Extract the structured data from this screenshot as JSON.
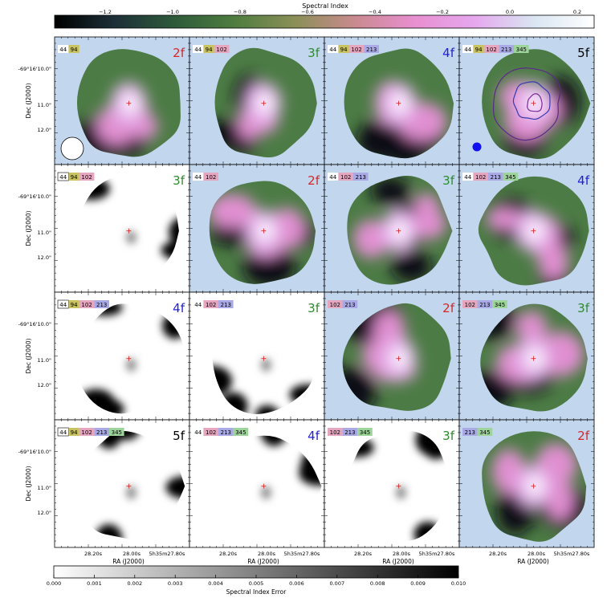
{
  "chart_data": {
    "type": "heatmap",
    "top_colorbar": {
      "label": "Spectral Index",
      "range": [
        -1.35,
        0.25
      ],
      "ticks": [
        "−1.2",
        "−1.0",
        "−0.8",
        "−0.6",
        "−0.4",
        "−0.2",
        "0.0",
        "0.2"
      ],
      "tick_values": [
        -1.2,
        -1.0,
        -0.8,
        -0.6,
        -0.4,
        -0.2,
        0.0,
        0.2
      ],
      "colormap": [
        "#000000",
        "#1d2f38",
        "#2e5a3a",
        "#4f7d3f",
        "#8a8f57",
        "#c98a8e",
        "#e88fd0",
        "#e6a7ee",
        "#d9e6f2",
        "#ffffff"
      ]
    },
    "bottom_colorbar": {
      "label": "Spectral Index Error",
      "range": [
        0.0,
        0.01
      ],
      "ticks": [
        "0.000",
        "0.001",
        "0.002",
        "0.003",
        "0.004",
        "0.005",
        "0.006",
        "0.007",
        "0.008",
        "0.009",
        "0.010"
      ],
      "colormap": [
        "#ffffff",
        "#000000"
      ]
    },
    "axes": {
      "xlabel": "RA (J2000)",
      "ylabel": "Dec (J2000)",
      "xticks": [
        "28.20s",
        "28.00s",
        "5h35m27.80s"
      ],
      "yticks": [
        "-69°16'10.0\"",
        "11.0\"",
        "12.0\""
      ]
    },
    "grid": {
      "rows": 4,
      "cols": 4,
      "panels": [
        {
          "bands": [
            "44",
            "94"
          ],
          "fit": "2f",
          "map": "index",
          "beam": "large"
        },
        {
          "bands": [
            "44",
            "94",
            "102"
          ],
          "fit": "3f",
          "map": "index"
        },
        {
          "bands": [
            "44",
            "94",
            "102",
            "213"
          ],
          "fit": "4f",
          "map": "index"
        },
        {
          "bands": [
            "44",
            "94",
            "102",
            "213",
            "345"
          ],
          "fit": "5f",
          "map": "index",
          "contours": true,
          "beam": "small"
        },
        {
          "bands": [
            "44",
            "94",
            "102"
          ],
          "fit": "3f",
          "map": "error"
        },
        {
          "bands": [
            "44",
            "102"
          ],
          "fit": "2f",
          "map": "index"
        },
        {
          "bands": [
            "44",
            "102",
            "213"
          ],
          "fit": "3f",
          "map": "index"
        },
        {
          "bands": [
            "44",
            "102",
            "213",
            "345"
          ],
          "fit": "4f",
          "map": "index"
        },
        {
          "bands": [
            "44",
            "94",
            "102",
            "213"
          ],
          "fit": "4f",
          "map": "error"
        },
        {
          "bands": [
            "44",
            "102",
            "213"
          ],
          "fit": "3f",
          "map": "error"
        },
        {
          "bands": [
            "102",
            "213"
          ],
          "fit": "2f",
          "map": "index"
        },
        {
          "bands": [
            "102",
            "213",
            "345"
          ],
          "fit": "3f",
          "map": "index"
        },
        {
          "bands": [
            "44",
            "94",
            "102",
            "213",
            "345"
          ],
          "fit": "5f",
          "map": "error"
        },
        {
          "bands": [
            "44",
            "102",
            "213",
            "345"
          ],
          "fit": "4f",
          "map": "error"
        },
        {
          "bands": [
            "102",
            "213",
            "345"
          ],
          "fit": "3f",
          "map": "error"
        },
        {
          "bands": [
            "213",
            "345"
          ],
          "fit": "2f",
          "map": "index"
        }
      ]
    },
    "band_colors": {
      "44": "#ffffff",
      "94": "#c9c35f",
      "102": "#e7a6bf",
      "213": "#a9a9e6",
      "345": "#9dd49a"
    },
    "fit_colors": {
      "2f": "#d62728",
      "3f": "#2e8b2e",
      "4f": "#1f1fd6",
      "5f": "#000000"
    }
  }
}
